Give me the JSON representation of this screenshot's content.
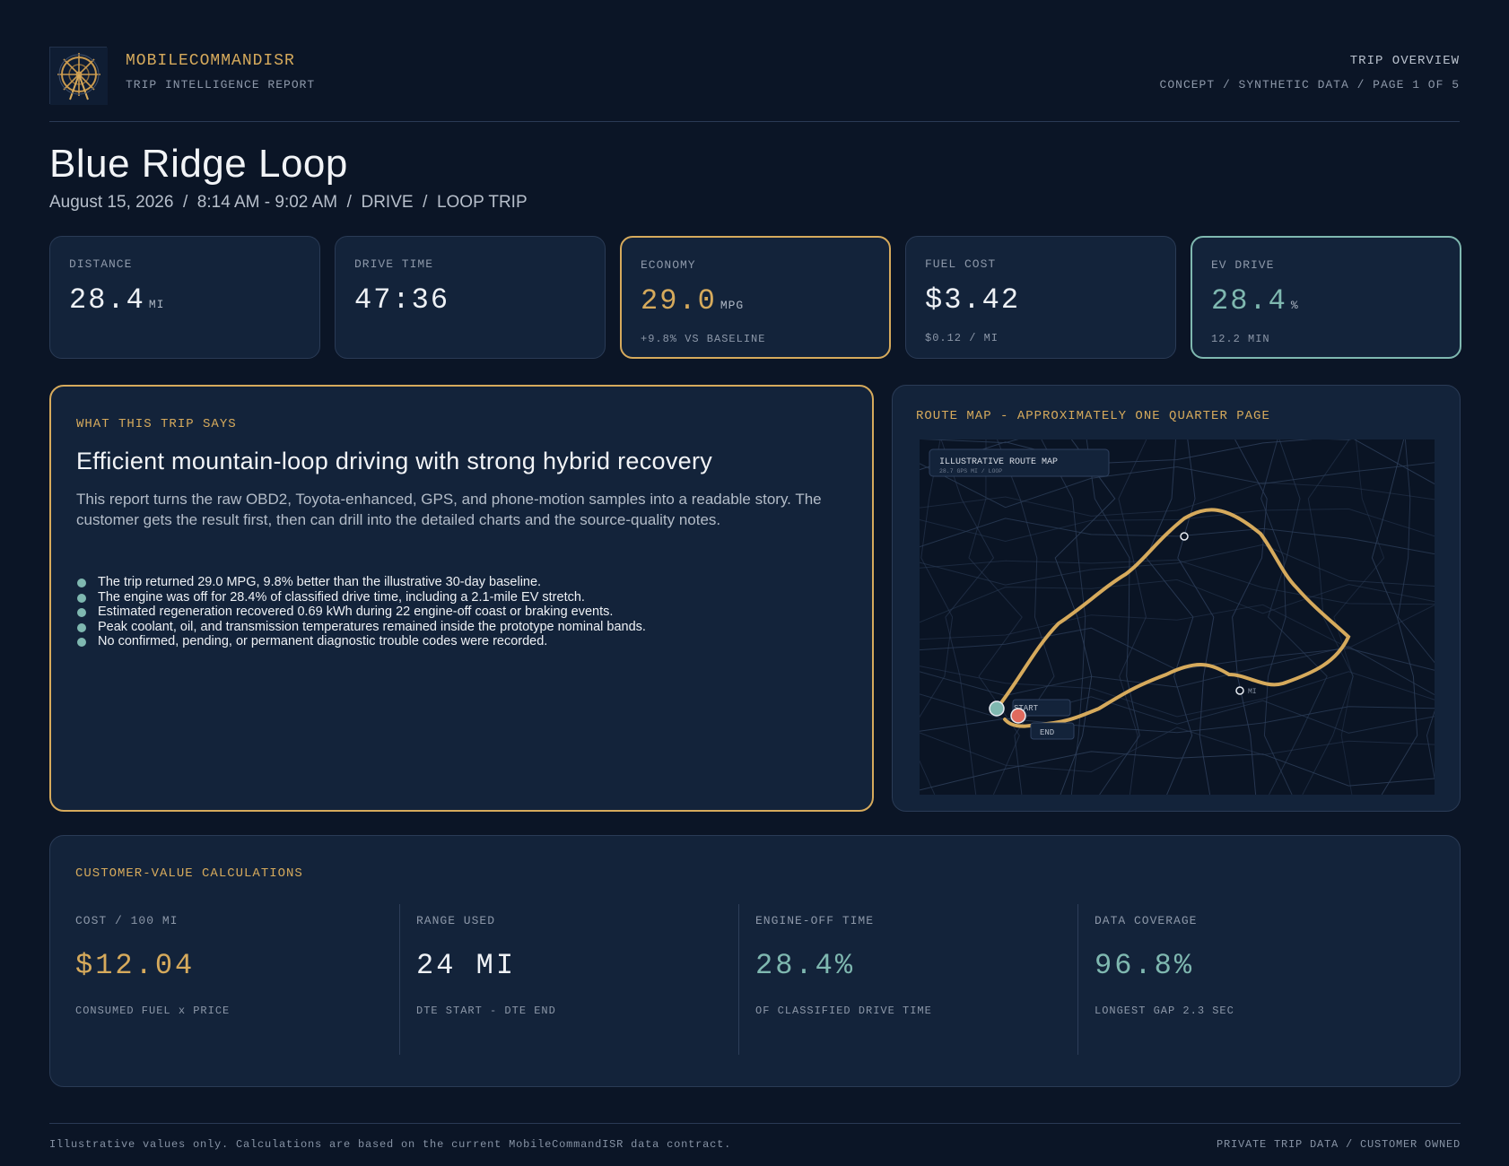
{
  "header": {
    "brand": "MOBILECOMMANDISR",
    "brand_sub": "TRIP INTELLIGENCE REPORT",
    "right_title": "TRIP OVERVIEW",
    "right_sub": "CONCEPT / SYNTHETIC DATA / PAGE 1 OF 5",
    "logo_icon": "helm-compass-icon"
  },
  "trip": {
    "title": "Blue Ridge Loop",
    "subtitle": "August 15, 2026  /  8:14 AM - 9:02 AM  /  DRIVE  /  LOOP TRIP"
  },
  "kpis": [
    {
      "label": "DISTANCE",
      "value": "28.4",
      "unit": "MI",
      "sub": ""
    },
    {
      "label": "DRIVE TIME",
      "value": "47:36",
      "unit": "",
      "sub": ""
    },
    {
      "label": "ECONOMY",
      "value": "29.0",
      "unit": "MPG",
      "sub": "+9.8% VS BASELINE"
    },
    {
      "label": "FUEL COST",
      "value": "$3.42",
      "unit": "",
      "sub": "$0.12 / MI"
    },
    {
      "label": "EV DRIVE",
      "value": "28.4",
      "unit": "%",
      "sub": "12.2 MIN"
    }
  ],
  "story": {
    "label": "WHAT THIS TRIP SAYS",
    "headline": "Efficient mountain-loop driving with strong hybrid recovery",
    "body": "This report turns the raw OBD2, Toyota-enhanced, GPS, and phone-motion samples into a readable story. The customer gets the result first, then can drill into the detailed charts and the source-quality notes.",
    "bullets": [
      "The trip returned 29.0 MPG, 9.8% better than the illustrative 30-day baseline.",
      "The engine was off for 28.4% of classified drive time, including a 2.1-mile EV stretch.",
      "Estimated regeneration recovered 0.69 kWh during 22 engine-off coast or braking events.",
      "Peak coolant, oil, and transmission temperatures remained inside the prototype nominal bands.",
      "No confirmed, pending, or permanent diagnostic trouble codes were recorded."
    ]
  },
  "map": {
    "label": "ROUTE MAP - APPROXIMATELY ONE QUARTER PAGE",
    "legend_title": "ILLUSTRATIVE ROUTE MAP",
    "legend_sub": "28.7 GPS MI  /  LOOP",
    "start_label": "START",
    "end_label": "END",
    "mid_label": "MI",
    "route_color": "#d6aa5c",
    "start_color": "#7fb8b0",
    "end_color": "#e06a5e"
  },
  "calc": {
    "label": "CUSTOMER-VALUE CALCULATIONS",
    "items": [
      {
        "label": "COST / 100 MI",
        "value": "$12.04",
        "sub": "CONSUMED FUEL x PRICE",
        "accent": "gold"
      },
      {
        "label": "RANGE USED",
        "value": "24 MI",
        "sub": "DTE START - DTE END",
        "accent": "white"
      },
      {
        "label": "ENGINE-OFF TIME",
        "value": "28.4%",
        "sub": "OF CLASSIFIED DRIVE TIME",
        "accent": "teal"
      },
      {
        "label": "DATA COVERAGE",
        "value": "96.8%",
        "sub": "LONGEST GAP 2.3 SEC",
        "accent": "teal"
      }
    ]
  },
  "footer": {
    "left": "Illustrative values only. Calculations are based on the current MobileCommandISR data contract.",
    "right": "PRIVATE TRIP DATA / CUSTOMER OWNED"
  }
}
